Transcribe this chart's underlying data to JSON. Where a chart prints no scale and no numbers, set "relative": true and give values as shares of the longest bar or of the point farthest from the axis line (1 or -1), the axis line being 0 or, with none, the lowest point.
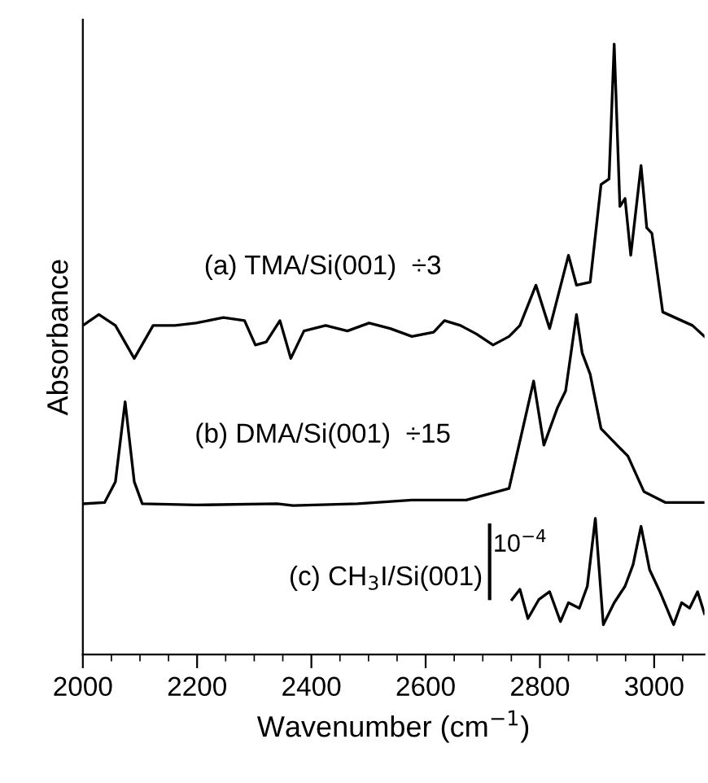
{
  "chart_data": {
    "type": "line",
    "relative": true,
    "xlabel": "Wavenumber (cm$^{−1}$)",
    "ylabel": "Absorbance",
    "xlim": [
      2000,
      3088
    ],
    "xticks": [
      2000,
      {
        "value": 2050,
        "label": null
      },
      {
        "value": 2100,
        "label": null
      },
      {
        "value": 2150,
        "label": null
      },
      2200,
      {
        "value": 2250,
        "label": null
      },
      {
        "value": 2300,
        "label": null
      },
      {
        "value": 2350,
        "label": null
      },
      2400,
      {
        "value": 2450,
        "label": null
      },
      {
        "value": 2500,
        "label": null
      },
      {
        "value": 2550,
        "label": null
      },
      2600,
      {
        "value": 2650,
        "label": null
      },
      {
        "value": 2700,
        "label": null
      },
      {
        "value": 2750,
        "label": null
      },
      2800,
      {
        "value": 2850,
        "label": null
      },
      {
        "value": 2900,
        "label": null
      },
      {
        "value": 2950,
        "label": null
      },
      3000,
      {
        "value": 3050,
        "label": null
      }
    ],
    "tick_labels": "x",
    "grid": false,
    "legend": false,
    "marker": "none",
    "line_style": "solid",
    "annotations": [
      "10$^{−4}$"
    ],
    "series": [
      {
        "name": "(a) TMA/Si(001)  ÷3",
        "color": "#000000",
        "x": [
          2000,
          2028,
          2057,
          2090,
          2123,
          2161,
          2198,
          2246,
          2283,
          2302,
          2321,
          2345,
          2364,
          2387,
          2425,
          2463,
          2501,
          2538,
          2576,
          2614,
          2633,
          2661,
          2689,
          2718,
          2746,
          2765,
          2793,
          2817,
          2850,
          2864,
          2888,
          2907,
          2921,
          2930,
          2940,
          2949,
          2959,
          2977,
          2987,
          2996,
          3015,
          3048,
          3067,
          3088
        ],
        "values": [
          0.539,
          0.557,
          0.539,
          0.485,
          0.539,
          0.539,
          0.543,
          0.552,
          0.547,
          0.507,
          0.512,
          0.547,
          0.485,
          0.53,
          0.539,
          0.53,
          0.543,
          0.534,
          0.521,
          0.528,
          0.547,
          0.539,
          0.525,
          0.507,
          0.521,
          0.539,
          0.605,
          0.534,
          0.654,
          0.605,
          0.61,
          0.77,
          0.779,
          1.0,
          0.734,
          0.747,
          0.654,
          0.801,
          0.699,
          0.69,
          0.561,
          0.547,
          0.539,
          0.521
        ]
      },
      {
        "name": "(b) DMA/Si(001)  ÷15",
        "color": "#000000",
        "x": [
          2000,
          2038,
          2057,
          2074,
          2090,
          2104,
          2198,
          2340,
          2368,
          2481,
          2576,
          2671,
          2746,
          2770,
          2789,
          2807,
          2831,
          2845,
          2864,
          2874,
          2888,
          2907,
          2935,
          2954,
          2982,
          3020,
          3088
        ],
        "values": [
          0.247,
          0.249,
          0.283,
          0.414,
          0.283,
          0.247,
          0.245,
          0.247,
          0.244,
          0.247,
          0.253,
          0.253,
          0.272,
          0.37,
          0.448,
          0.343,
          0.405,
          0.432,
          0.557,
          0.494,
          0.459,
          0.37,
          0.343,
          0.325,
          0.267,
          0.249,
          0.249
        ]
      },
      {
        "name": "(c) CH$_{3}$I/Si(001)",
        "color": "#000000",
        "x": [
          2751,
          2765,
          2779,
          2798,
          2817,
          2836,
          2850,
          2869,
          2883,
          2897,
          2911,
          2930,
          2949,
          2963,
          2977,
          2992,
          3010,
          3034,
          3048,
          3062,
          3076,
          3088
        ],
        "values": [
          0.09,
          0.107,
          0.059,
          0.09,
          0.103,
          0.054,
          0.085,
          0.076,
          0.112,
          0.223,
          0.049,
          0.085,
          0.112,
          0.147,
          0.21,
          0.139,
          0.103,
          0.049,
          0.085,
          0.076,
          0.103,
          0.067
        ]
      }
    ]
  }
}
